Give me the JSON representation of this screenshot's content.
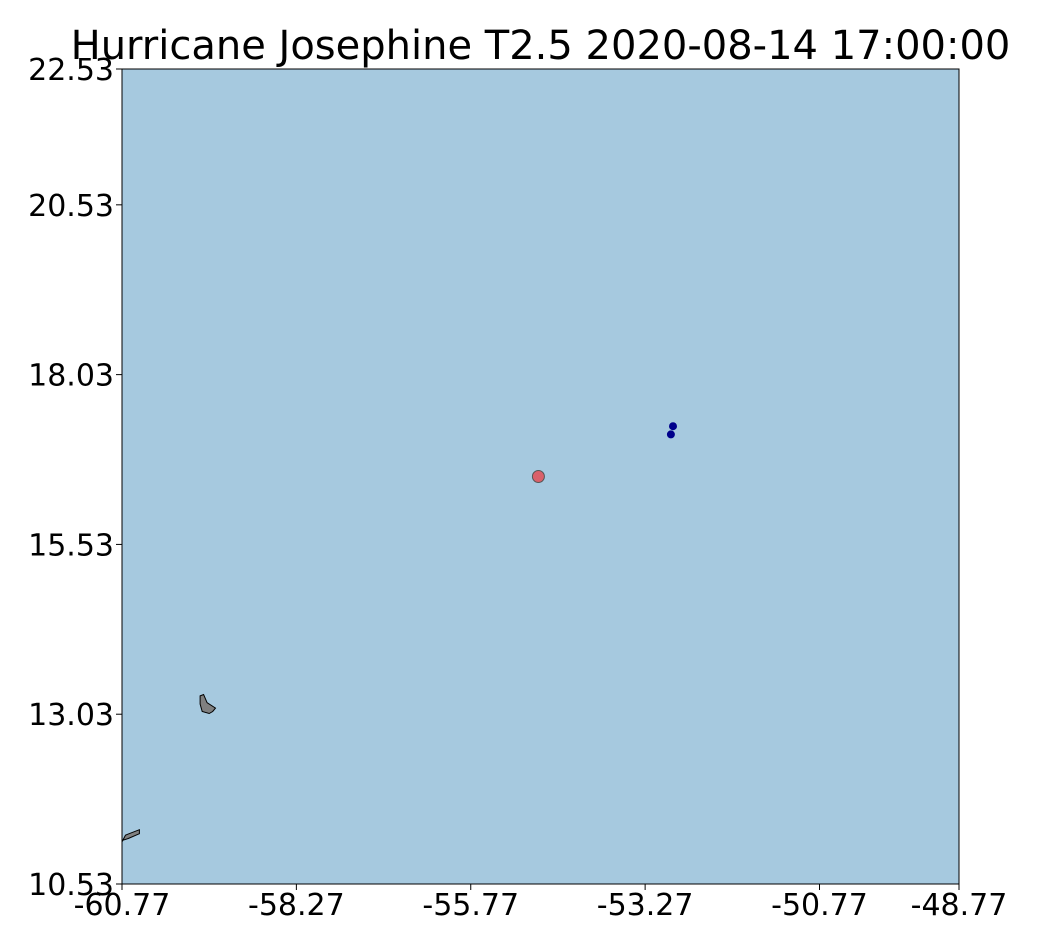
{
  "title": "Hurricane Josephine T2.5 2020-08-14 17:00:00",
  "colors": {
    "ocean": "#a6c9df",
    "land": "#808080",
    "current_position": "#d9606a",
    "track_points": "#00008b"
  },
  "chart_data": {
    "type": "scatter",
    "title": "Hurricane Josephine T2.5 2020-08-14 17:00:00",
    "xlabel": "",
    "ylabel": "",
    "xlim": [
      -60.77,
      -48.77
    ],
    "ylim": [
      10.53,
      22.53
    ],
    "x_ticks": [
      "-60.77",
      "-58.27",
      "-55.77",
      "-53.27",
      "-50.77",
      "-48.77"
    ],
    "y_ticks": [
      "10.53",
      "13.03",
      "15.53",
      "18.03",
      "20.53",
      "22.53"
    ],
    "grid": false,
    "series": [
      {
        "points": [
          {
            "x": -54.8,
            "y": 16.53
          }
        ],
        "color": "#d9606a",
        "marker": "large-circle"
      },
      {
        "points": [
          {
            "x": -52.87,
            "y": 17.27
          },
          {
            "x": -52.9,
            "y": 17.15
          }
        ],
        "color": "#00008b",
        "marker": "small-circle"
      }
    ],
    "land_masses": [
      {
        "name": "Barbados",
        "outline": [
          [
            -59.65,
            13.3
          ],
          [
            -59.6,
            13.32
          ],
          [
            -59.55,
            13.2
          ],
          [
            -59.43,
            13.12
          ],
          [
            -59.47,
            13.07
          ],
          [
            -59.52,
            13.04
          ],
          [
            -59.62,
            13.07
          ],
          [
            -59.65,
            13.18
          ]
        ]
      },
      {
        "name": "Tobago",
        "outline": [
          [
            -60.77,
            11.15
          ],
          [
            -60.72,
            11.25
          ],
          [
            -60.52,
            11.33
          ],
          [
            -60.52,
            11.27
          ],
          [
            -60.68,
            11.2
          ],
          [
            -60.77,
            11.17
          ]
        ]
      }
    ]
  }
}
